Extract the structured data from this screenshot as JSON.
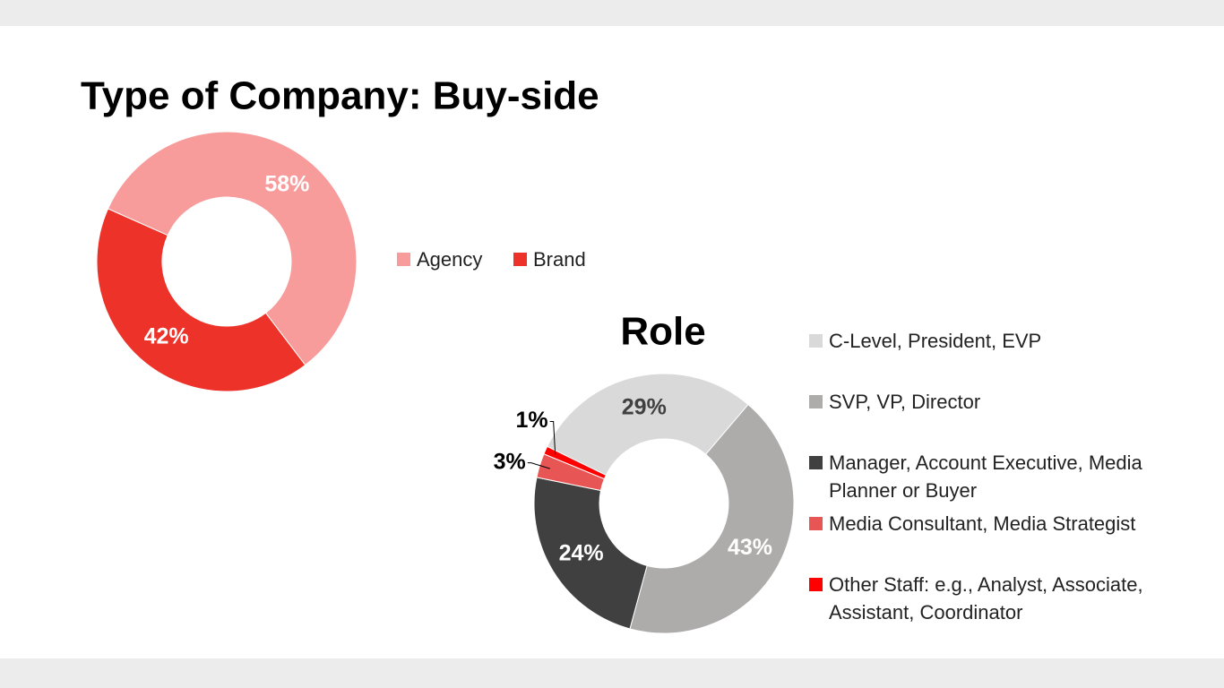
{
  "chart_data": [
    {
      "type": "donut",
      "title": "Type of Company:  Buy-side",
      "categories": [
        "Agency",
        "Brand"
      ],
      "values": [
        58,
        42
      ],
      "value_labels": [
        "58%",
        "42%"
      ],
      "colors": [
        "#f79b9b",
        "#ec3229"
      ],
      "label_colors": [
        "#ffffff",
        "#ffffff"
      ],
      "legend": "right"
    },
    {
      "type": "donut",
      "title": "Role",
      "categories": [
        "C-Level, President, EVP",
        "SVP, VP, Director",
        "Manager, Account Executive, Media Planner or Buyer",
        "Media Consultant, Media Strategist",
        "Other Staff: e.g., Analyst, Associate, Assistant, Coordinator"
      ],
      "values": [
        29,
        43,
        24,
        3,
        1
      ],
      "value_labels": [
        "29%",
        "43%",
        "24%",
        "3%",
        "1%"
      ],
      "colors": [
        "#d9d9d9",
        "#aeabab",
        "#404040",
        "#e85555",
        "#ff0000"
      ],
      "label_colors": [
        "#404040",
        "#ffffff",
        "#ffffff",
        "#000000",
        "#000000"
      ],
      "legend": "right"
    }
  ]
}
